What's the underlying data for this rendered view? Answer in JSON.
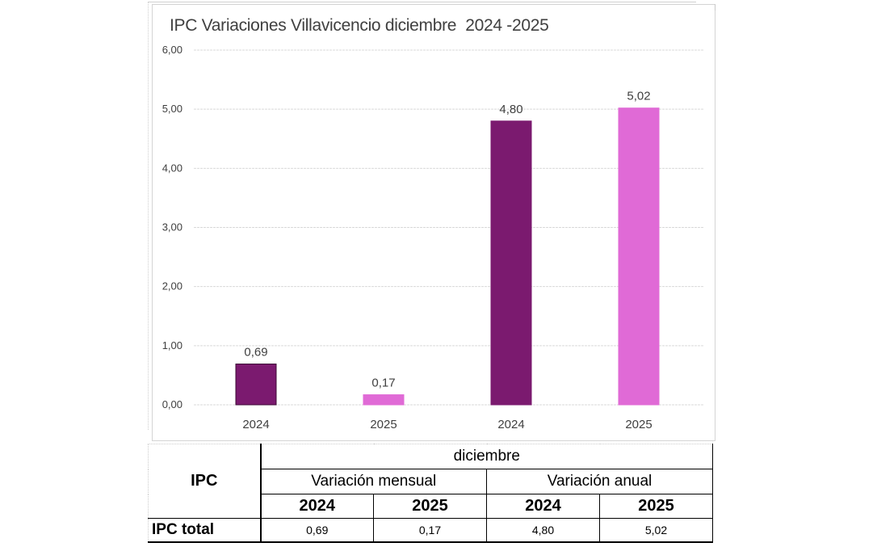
{
  "chart_data": {
    "type": "bar",
    "title": "IPC Variaciones Villavicencio diciembre  2024 -2025",
    "xlabel": "",
    "ylabel": "",
    "ylim": [
      0,
      6
    ],
    "yticks": [
      "0,00",
      "1,00",
      "2,00",
      "3,00",
      "4,00",
      "5,00",
      "6,00"
    ],
    "ytick_values": [
      0,
      1,
      2,
      3,
      4,
      5,
      6
    ],
    "grid": true,
    "legend": "none",
    "categories": [
      "2024",
      "2025",
      "2024",
      "2025"
    ],
    "values": [
      0.69,
      0.17,
      4.8,
      5.02
    ],
    "data_labels": [
      "0,69",
      "0,17",
      "4,80",
      "5,02"
    ],
    "groups": [
      "Variación mensual",
      "Variación mensual",
      "Variación anual",
      "Variación anual"
    ],
    "bar_colors": [
      "#7b1a6f",
      "#e06ad6",
      "#7b1a6f",
      "#e06ad6"
    ],
    "bar_edge_colors": [
      "#3d0a36",
      "#e06ad6",
      "#7b1a6f",
      "#e06ad6"
    ]
  },
  "table": {
    "row_header": "IPC",
    "month": "diciembre",
    "groups": [
      "Variación mensual",
      "Variación anual"
    ],
    "years": [
      "2024",
      "2025",
      "2024",
      "2025"
    ],
    "rows": [
      {
        "label": "IPC total",
        "values": [
          "0,69",
          "0,17",
          "4,80",
          "5,02"
        ]
      }
    ]
  }
}
